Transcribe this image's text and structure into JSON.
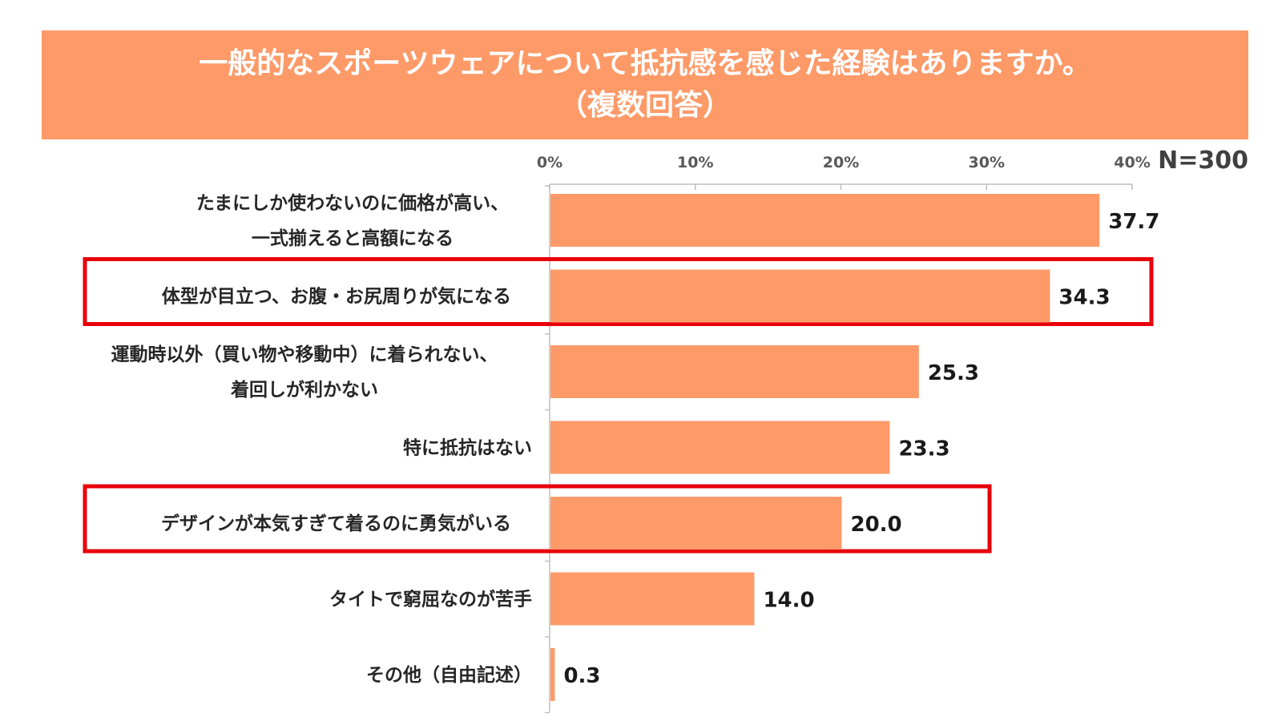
{
  "title": {
    "line1": "一般的なスポーツウェアについて抵抗感を感じた経験はありますか。",
    "line2": "（複数回答）"
  },
  "sample_size": "N=300",
  "colors": {
    "banner": "#fd9a68",
    "bar": "#fd9a68",
    "highlight": "#e8000b",
    "axis": "#bfbfbf"
  },
  "chart_data": {
    "type": "bar",
    "orientation": "horizontal",
    "title": "一般的なスポーツウェアについて抵抗感を感じた経験はありますか。（複数回答）",
    "xlabel": "",
    "ylabel": "",
    "xlim": [
      0,
      40
    ],
    "ticks": [
      0,
      10,
      20,
      30,
      40
    ],
    "tick_labels": [
      "0%",
      "10%",
      "20%",
      "30%",
      "40%"
    ],
    "categories": [
      [
        "たまにしか使わないのに価格が高い、",
        "一式揃えると高額になる"
      ],
      [
        "体型が目立つ、お腹・お尻周りが気になる"
      ],
      [
        "運動時以外（買い物や移動中）に着られない、",
        "着回しが利かない"
      ],
      [
        "特に抵抗はない"
      ],
      [
        "デザインが本気すぎて着るのに勇気がいる"
      ],
      [
        "タイトで窮屈なのが苦手"
      ],
      [
        "その他（自由記述）"
      ]
    ],
    "values": [
      37.7,
      34.3,
      25.3,
      23.3,
      20.0,
      14.0,
      0.3
    ],
    "value_labels": [
      "37.7",
      "34.3",
      "25.3",
      "23.3",
      "20.0",
      "14.0",
      "0.3"
    ],
    "highlighted": [
      1,
      4
    ]
  }
}
